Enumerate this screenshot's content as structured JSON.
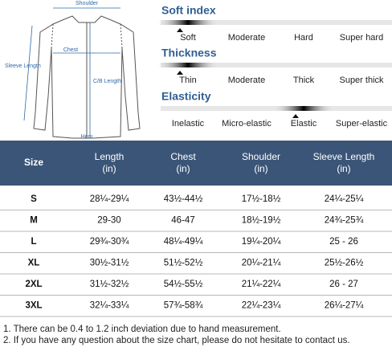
{
  "diagram": {
    "labels": {
      "shoulder": "Shoulder",
      "chest": "Chest",
      "sleeve": "Sleeve Length",
      "cb": "C/B Length",
      "hem": "Hem"
    }
  },
  "scales": [
    {
      "title": "Soft index",
      "options": [
        "Soft",
        "Moderate",
        "Hard",
        "Super hard"
      ],
      "selected": 0
    },
    {
      "title": "Thickness",
      "options": [
        "Thin",
        "Moderate",
        "Thick",
        "Super thick"
      ],
      "selected": 0
    },
    {
      "title": "Elasticity",
      "options": [
        "Inelastic",
        "Micro-elastic",
        "Elastic",
        "Super-elastic"
      ],
      "selected": 2
    }
  ],
  "table": {
    "header": [
      {
        "name": "Size"
      },
      {
        "name": "Length",
        "unit": "(in)"
      },
      {
        "name": "Chest",
        "unit": "(in)"
      },
      {
        "name": "Shoulder",
        "unit": "(in)"
      },
      {
        "name": "Sleeve Length",
        "unit": "(in)"
      }
    ],
    "rows": [
      [
        "S",
        "28¼-29¼",
        "43½-44½",
        "17½-18½",
        "24¼-25¼"
      ],
      [
        "M",
        "29-30",
        "46-47",
        "18½-19½",
        "24¾-25¾"
      ],
      [
        "L",
        "29¾-30¾",
        "48¼-49¼",
        "19¼-20¼",
        "25 - 26"
      ],
      [
        "XL",
        "30½-31½",
        "51½-52½",
        "20¼-21¼",
        "25½-26½"
      ],
      [
        "2XL",
        "31½-32½",
        "54½-55½",
        "21¼-22¼",
        "26 - 27"
      ],
      [
        "3XL",
        "32¼-33¼",
        "57¾-58¾",
        "22¼-23¼",
        "26¼-27¼"
      ]
    ]
  },
  "notes": [
    "1. There can be 0.4 to 1.2 inch deviation due to hand measurement.",
    "2. If you have any question about the size chart, please do not hesitate to contact us."
  ]
}
